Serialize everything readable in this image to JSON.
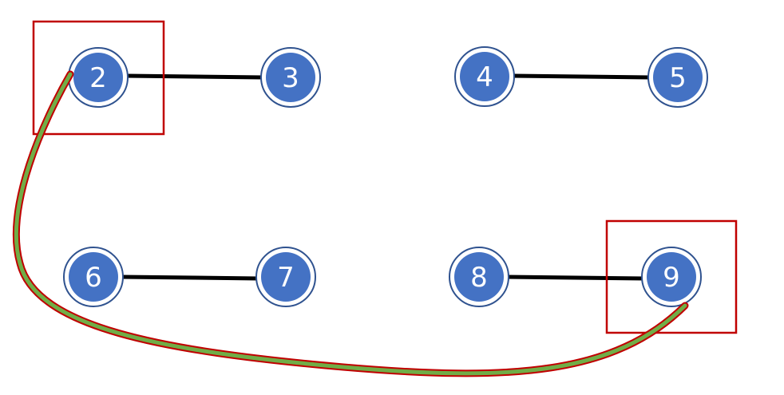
{
  "colors": {
    "node_fill": "#4472C4",
    "node_ring": "#2F528F",
    "edge": "#000000",
    "highlight_box": "#C00000",
    "path_fill": "#70AD47",
    "path_outline": "#C00000"
  },
  "nodes": [
    {
      "id": "n2",
      "label": "2"
    },
    {
      "id": "n3",
      "label": "3"
    },
    {
      "id": "n4",
      "label": "4"
    },
    {
      "id": "n5",
      "label": "5"
    },
    {
      "id": "n6",
      "label": "6"
    },
    {
      "id": "n7",
      "label": "7"
    },
    {
      "id": "n8",
      "label": "8"
    },
    {
      "id": "n9",
      "label": "9"
    }
  ],
  "edges": [
    {
      "from": "2",
      "to": "3"
    },
    {
      "from": "4",
      "to": "5"
    },
    {
      "from": "6",
      "to": "7"
    },
    {
      "from": "8",
      "to": "9"
    }
  ],
  "highlighted_nodes": [
    "2",
    "9"
  ],
  "path": {
    "from": "2",
    "to": "9"
  }
}
